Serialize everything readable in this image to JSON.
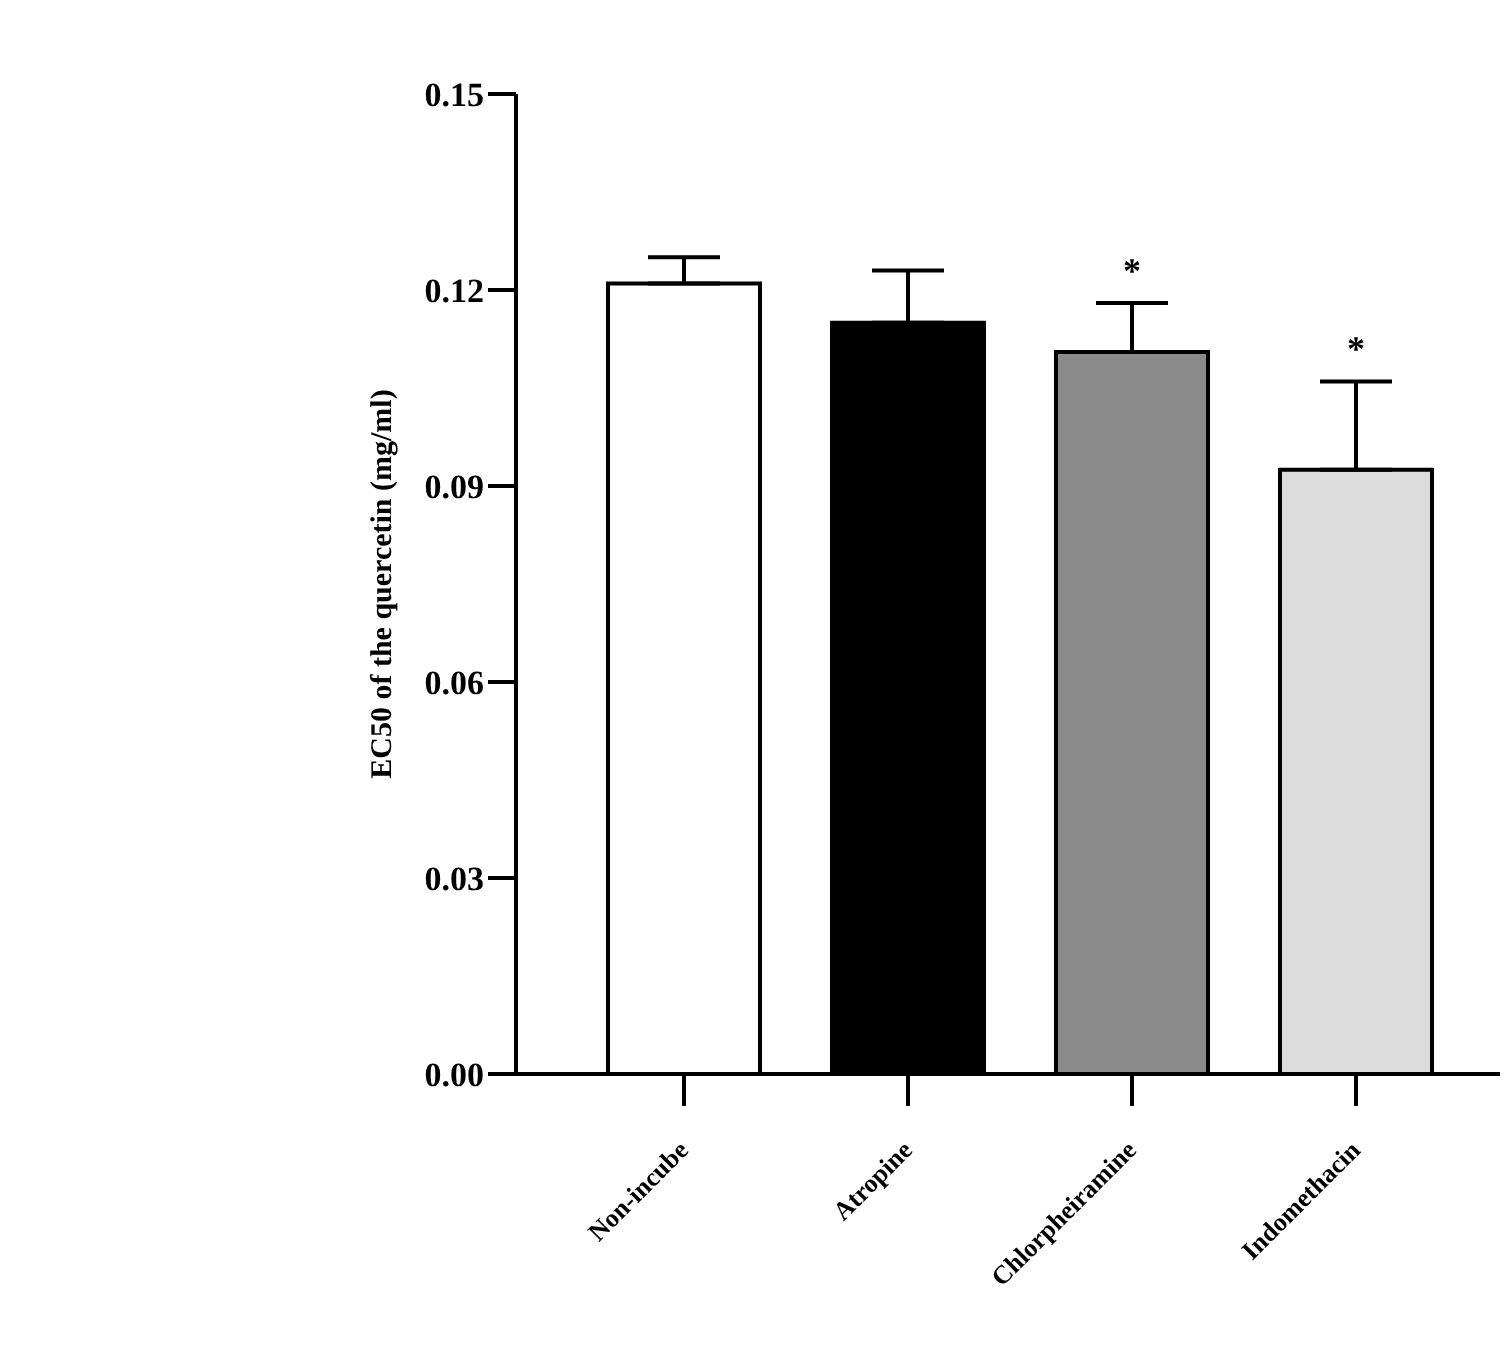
{
  "chart_data": {
    "type": "bar",
    "ylabel": "EC50 of the quercetin (mg/ml)",
    "categories": [
      "Non-incube",
      "Atropine",
      "Chlorpheiramine",
      "Indomethacin"
    ],
    "values": [
      0.121,
      0.115,
      0.1105,
      0.0925
    ],
    "colors": [
      "#ffffff",
      "#000000",
      "#8a8a8a",
      "#dcdcdc"
    ],
    "errors": [
      [
        0.121,
        0.125
      ],
      [
        0.115,
        0.123
      ],
      [
        0.1105,
        0.118
      ],
      [
        0.0925,
        0.106
      ]
    ],
    "ylim": [
      0,
      0.15
    ],
    "yticks": [
      {
        "value": 0,
        "label": "0.00"
      },
      {
        "value": 0.03,
        "label": "0.03"
      },
      {
        "value": 0.06,
        "label": "0.06"
      },
      {
        "value": 0.09,
        "label": "0.09"
      },
      {
        "value": 0.12,
        "label": "0.12"
      },
      {
        "value": 0.15,
        "label": "0.15"
      }
    ],
    "value_labels": [
      null,
      null,
      "*",
      "*"
    ],
    "grid": false,
    "legend": false
  }
}
